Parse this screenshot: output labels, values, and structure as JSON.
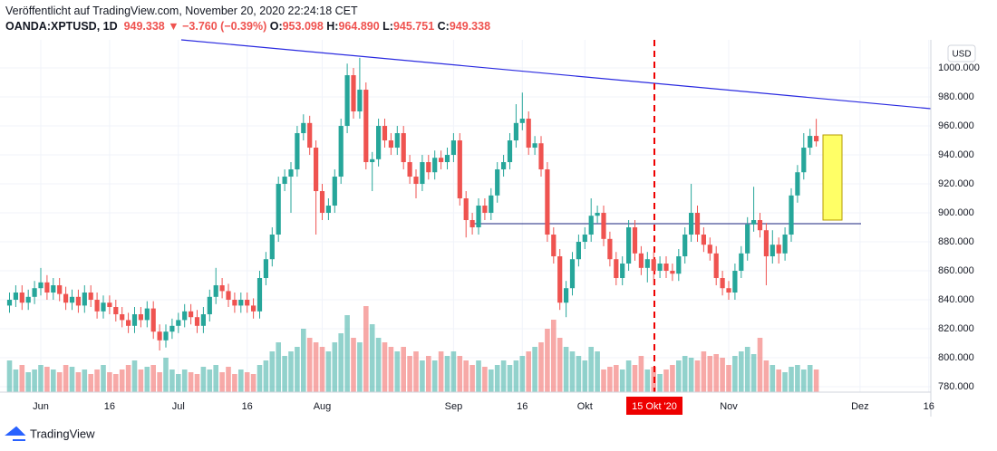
{
  "header": {
    "published": "Veröffentlicht auf TradingView.com, November 20, 2020 22:24:18 CET",
    "symbol": "OANDA:XPTUSD, 1D",
    "last": "949.338",
    "arrow": "▼",
    "change": "−3.760 (−0.39%)",
    "o_label": "O:",
    "o": "953.098",
    "h_label": "H:",
    "h": "964.890",
    "l_label": "L:",
    "l": "945.751",
    "c_label": "C:",
    "c": "949.338"
  },
  "chart_data": {
    "type": "candlestick",
    "currency": "USD",
    "crosshair_label": "15 Okt '20",
    "brand": "TradingView",
    "up_color": "#26a69a",
    "down_color": "#ef5350",
    "grid": true,
    "ylim": [
      776.25,
      1019.4
    ],
    "yticks": [
      {
        "value": 780,
        "label": "780.000"
      },
      {
        "value": 800,
        "label": "800.000"
      },
      {
        "value": 820,
        "label": "820.000"
      },
      {
        "value": 840,
        "label": "840.000"
      },
      {
        "value": 860,
        "label": "860.000"
      },
      {
        "value": 880,
        "label": "880.000"
      },
      {
        "value": 900,
        "label": "900.000"
      },
      {
        "value": 920,
        "label": "920.000"
      },
      {
        "value": 940,
        "label": "940.000"
      },
      {
        "value": 960,
        "label": "960.000"
      },
      {
        "value": 980,
        "label": "980.000"
      },
      {
        "value": 1000,
        "label": "1000.000"
      }
    ],
    "categories": [
      null,
      null,
      null,
      null,
      null,
      "Jun",
      null,
      null,
      null,
      null,
      null,
      null,
      null,
      null,
      null,
      null,
      "16",
      null,
      null,
      null,
      null,
      null,
      null,
      null,
      null,
      null,
      null,
      "Jul",
      null,
      null,
      null,
      null,
      null,
      null,
      null,
      null,
      null,
      null,
      "16",
      null,
      null,
      null,
      null,
      null,
      null,
      null,
      null,
      null,
      null,
      null,
      "Aug",
      null,
      null,
      null,
      null,
      null,
      null,
      null,
      null,
      null,
      null,
      null,
      null,
      null,
      null,
      null,
      null,
      null,
      null,
      null,
      null,
      "Sep",
      null,
      null,
      null,
      null,
      null,
      null,
      null,
      null,
      null,
      null,
      "16",
      null,
      null,
      null,
      null,
      null,
      null,
      null,
      null,
      null,
      "Okt",
      null,
      null,
      null,
      null,
      null,
      null,
      null,
      null,
      null,
      null,
      null,
      null,
      null,
      null,
      null,
      null,
      null,
      null,
      null,
      null,
      null,
      null,
      "Nov",
      null,
      null,
      null,
      null,
      null,
      null,
      null,
      null,
      null,
      null,
      null,
      null,
      null,
      null,
      null,
      null,
      null,
      null,
      null,
      null,
      "Dez",
      null,
      null,
      null,
      null,
      null,
      null,
      null,
      null,
      null,
      null,
      "16"
    ],
    "ohlc": [
      [
        836,
        845,
        831,
        840
      ],
      [
        840,
        850,
        835,
        845
      ],
      [
        845,
        850,
        833,
        838
      ],
      [
        838,
        847,
        833,
        842
      ],
      [
        842,
        853,
        837,
        848
      ],
      [
        848,
        862,
        843,
        852
      ],
      [
        852,
        857,
        840,
        845
      ],
      [
        845,
        855,
        840,
        850
      ],
      [
        850,
        855,
        839,
        844
      ],
      [
        844,
        849,
        833,
        838
      ],
      [
        838,
        847,
        833,
        842
      ],
      [
        842,
        847,
        831,
        836
      ],
      [
        836,
        850,
        831,
        845
      ],
      [
        845,
        850,
        835,
        840
      ],
      [
        840,
        845,
        827,
        832
      ],
      [
        832,
        843,
        827,
        838
      ],
      [
        838,
        843,
        830,
        835
      ],
      [
        835,
        840,
        825,
        830
      ],
      [
        830,
        835,
        821,
        826
      ],
      [
        826,
        831,
        817,
        822
      ],
      [
        822,
        835,
        817,
        830
      ],
      [
        830,
        835,
        821,
        826
      ],
      [
        826,
        839,
        821,
        834
      ],
      [
        834,
        839,
        813,
        818
      ],
      [
        818,
        823,
        805,
        812
      ],
      [
        812,
        823,
        807,
        818
      ],
      [
        818,
        827,
        813,
        822
      ],
      [
        822,
        831,
        817,
        826
      ],
      [
        826,
        837,
        821,
        832
      ],
      [
        832,
        837,
        823,
        828
      ],
      [
        828,
        833,
        817,
        822
      ],
      [
        822,
        835,
        817,
        830
      ],
      [
        830,
        847,
        825,
        842
      ],
      [
        842,
        862,
        837,
        850
      ],
      [
        850,
        855,
        841,
        846
      ],
      [
        846,
        851,
        835,
        840
      ],
      [
        840,
        845,
        831,
        836
      ],
      [
        836,
        845,
        831,
        840
      ],
      [
        840,
        845,
        831,
        836
      ],
      [
        836,
        841,
        827,
        832
      ],
      [
        832,
        860,
        827,
        855
      ],
      [
        855,
        873,
        850,
        868
      ],
      [
        868,
        890,
        863,
        885
      ],
      [
        885,
        925,
        880,
        920
      ],
      [
        920,
        930,
        915,
        925
      ],
      [
        925,
        935,
        900,
        930
      ],
      [
        930,
        960,
        925,
        955
      ],
      [
        955,
        968,
        950,
        962
      ],
      [
        962,
        967,
        940,
        945
      ],
      [
        945,
        950,
        885,
        915
      ],
      [
        915,
        920,
        895,
        900
      ],
      [
        900,
        910,
        895,
        905
      ],
      [
        905,
        930,
        900,
        925
      ],
      [
        925,
        965,
        920,
        960
      ],
      [
        960,
        1003,
        955,
        995
      ],
      [
        995,
        1000,
        965,
        970
      ],
      [
        970,
        1007,
        965,
        985
      ],
      [
        985,
        990,
        930,
        935
      ],
      [
        935,
        942,
        915,
        937
      ],
      [
        937,
        965,
        932,
        960
      ],
      [
        960,
        965,
        945,
        950
      ],
      [
        950,
        955,
        940,
        945
      ],
      [
        945,
        960,
        940,
        955
      ],
      [
        955,
        960,
        930,
        935
      ],
      [
        935,
        940,
        920,
        925
      ],
      [
        925,
        930,
        910,
        920
      ],
      [
        920,
        940,
        915,
        935
      ],
      [
        935,
        940,
        923,
        928
      ],
      [
        928,
        943,
        923,
        938
      ],
      [
        938,
        943,
        930,
        935
      ],
      [
        935,
        945,
        930,
        940
      ],
      [
        940,
        955,
        935,
        950
      ],
      [
        950,
        955,
        905,
        910
      ],
      [
        910,
        915,
        883,
        895
      ],
      [
        895,
        900,
        885,
        890
      ],
      [
        890,
        910,
        885,
        905
      ],
      [
        905,
        910,
        895,
        900
      ],
      [
        900,
        917,
        895,
        912
      ],
      [
        912,
        935,
        907,
        930
      ],
      [
        930,
        940,
        925,
        935
      ],
      [
        935,
        955,
        930,
        950
      ],
      [
        950,
        975,
        945,
        962
      ],
      [
        962,
        983,
        957,
        965
      ],
      [
        965,
        970,
        940,
        945
      ],
      [
        945,
        953,
        940,
        948
      ],
      [
        948,
        953,
        925,
        930
      ],
      [
        930,
        935,
        880,
        885
      ],
      [
        885,
        890,
        865,
        870
      ],
      [
        870,
        875,
        833,
        838
      ],
      [
        838,
        853,
        828,
        848
      ],
      [
        848,
        873,
        843,
        868
      ],
      [
        868,
        885,
        863,
        880
      ],
      [
        880,
        890,
        875,
        885
      ],
      [
        885,
        910,
        880,
        898
      ],
      [
        898,
        905,
        893,
        900
      ],
      [
        900,
        905,
        877,
        882
      ],
      [
        882,
        887,
        863,
        868
      ],
      [
        868,
        873,
        850,
        855
      ],
      [
        855,
        870,
        850,
        865
      ],
      [
        865,
        895,
        860,
        890
      ],
      [
        890,
        895,
        867,
        872
      ],
      [
        872,
        877,
        857,
        862
      ],
      [
        862,
        873,
        852,
        868
      ],
      [
        868,
        873,
        850,
        860
      ],
      [
        860,
        870,
        855,
        865
      ],
      [
        865,
        870,
        855,
        860
      ],
      [
        860,
        865,
        853,
        858
      ],
      [
        858,
        875,
        853,
        870
      ],
      [
        870,
        890,
        865,
        885
      ],
      [
        885,
        920,
        880,
        900
      ],
      [
        900,
        905,
        880,
        885
      ],
      [
        885,
        890,
        873,
        878
      ],
      [
        878,
        883,
        867,
        872
      ],
      [
        872,
        877,
        850,
        855
      ],
      [
        855,
        860,
        843,
        848
      ],
      [
        848,
        853,
        840,
        845
      ],
      [
        845,
        865,
        840,
        860
      ],
      [
        860,
        877,
        855,
        872
      ],
      [
        872,
        897,
        867,
        892
      ],
      [
        892,
        918,
        887,
        895
      ],
      [
        895,
        900,
        883,
        888
      ],
      [
        888,
        893,
        850,
        870
      ],
      [
        870,
        888,
        865,
        878
      ],
      [
        878,
        883,
        865,
        872
      ],
      [
        872,
        890,
        867,
        885
      ],
      [
        885,
        917,
        880,
        912
      ],
      [
        912,
        933,
        907,
        928
      ],
      [
        928,
        955,
        923,
        945
      ],
      [
        945,
        958,
        940,
        953.098
      ],
      [
        953.098,
        964.89,
        945.751,
        949.338
      ],
      null,
      null,
      null,
      null,
      null,
      null,
      null,
      null,
      null,
      null,
      null,
      null,
      null,
      null,
      null,
      null,
      null,
      null
    ],
    "volume": [
      35,
      25,
      30,
      22,
      25,
      30,
      28,
      25,
      22,
      30,
      28,
      22,
      25,
      20,
      25,
      30,
      22,
      20,
      25,
      30,
      35,
      25,
      28,
      30,
      22,
      38,
      25,
      20,
      25,
      22,
      20,
      28,
      25,
      30,
      22,
      28,
      20,
      25,
      22,
      20,
      30,
      35,
      45,
      55,
      40,
      45,
      50,
      70,
      60,
      55,
      50,
      45,
      55,
      65,
      85,
      60,
      55,
      95,
      75,
      60,
      55,
      50,
      45,
      50,
      40,
      45,
      35,
      40,
      35,
      45,
      40,
      45,
      40,
      35,
      30,
      35,
      28,
      25,
      30,
      35,
      30,
      35,
      40,
      45,
      50,
      55,
      70,
      80,
      60,
      50,
      45,
      40,
      35,
      50,
      45,
      25,
      28,
      30,
      25,
      35,
      30,
      40,
      25,
      28,
      20,
      25,
      30,
      35,
      40,
      38,
      35,
      45,
      40,
      42,
      38,
      30,
      40,
      45,
      50,
      42,
      60,
      35,
      30,
      25,
      22,
      28,
      30,
      25,
      30,
      25,
      null,
      null,
      null,
      null,
      null,
      null,
      null,
      null,
      null,
      null,
      null,
      null,
      null,
      null,
      null,
      null,
      null,
      null
    ]
  }
}
